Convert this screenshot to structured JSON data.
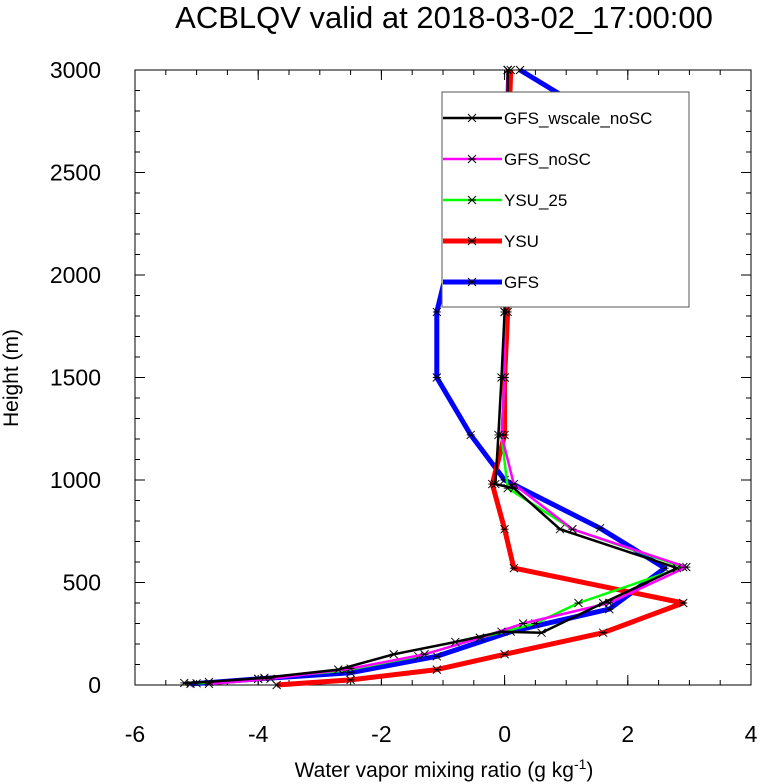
{
  "chart_data": {
    "type": "line",
    "title": "ACBLQV valid at 2018-03-02_17:00:00",
    "xlabel": "Water vapor mixing ratio (g kg",
    "xlabel_sup": "-1",
    "xlabel_end": ")",
    "ylabel": "Height (m)",
    "xlim": [
      -6,
      4
    ],
    "ylim": [
      0,
      3000
    ],
    "xticks": [
      -6,
      -4,
      -2,
      0,
      2,
      4
    ],
    "yticks": [
      0,
      500,
      1000,
      1500,
      2000,
      2500,
      3000
    ],
    "xtick_labels": [
      "-6",
      "-4",
      "-2",
      "0",
      "2",
      "4"
    ],
    "ytick_labels": [
      "0",
      "500",
      "1000",
      "1500",
      "2000",
      "2500",
      "3000"
    ],
    "grid": false,
    "legend_position": "top-right",
    "series": [
      {
        "name": "GFS_wscale_noSC",
        "color": "#000000",
        "points": [
          [
            -5.2,
            10
          ],
          [
            -4.8,
            15
          ],
          [
            -3.9,
            35
          ],
          [
            -2.7,
            75
          ],
          [
            -1.8,
            150
          ],
          [
            -0.8,
            210
          ],
          [
            -0.05,
            260
          ],
          [
            0.6,
            255
          ],
          [
            1.6,
            400
          ],
          [
            2.8,
            570
          ],
          [
            0.9,
            760
          ],
          [
            0.15,
            960
          ],
          [
            -0.15,
            980
          ],
          [
            -0.1,
            1220
          ],
          [
            -0.05,
            1500
          ],
          [
            0.0,
            1820
          ],
          [
            0.0,
            2200
          ],
          [
            0.05,
            2600
          ],
          [
            0.05,
            3000
          ]
        ]
      },
      {
        "name": "GFS_noSC",
        "color": "#ff00ff",
        "points": [
          [
            -4.8,
            5
          ],
          [
            -3.8,
            30
          ],
          [
            -2.5,
            80
          ],
          [
            -1.3,
            150
          ],
          [
            -0.4,
            230
          ],
          [
            0.3,
            300
          ],
          [
            1.7,
            400
          ],
          [
            2.95,
            575
          ],
          [
            1.1,
            760
          ],
          [
            0.15,
            980
          ],
          [
            -0.05,
            1220
          ],
          [
            0.0,
            1500
          ],
          [
            0.0,
            1820
          ],
          [
            0.0,
            2200
          ],
          [
            0.0,
            2600
          ],
          [
            0.05,
            3000
          ]
        ]
      },
      {
        "name": "YSU_25",
        "color": "#00ff00",
        "points": [
          [
            -5.0,
            8
          ],
          [
            -4.0,
            30
          ],
          [
            -2.6,
            70
          ],
          [
            -1.4,
            140
          ],
          [
            -0.4,
            230
          ],
          [
            0.5,
            300
          ],
          [
            1.2,
            400
          ],
          [
            2.9,
            575
          ],
          [
            1.1,
            760
          ],
          [
            0.05,
            960
          ],
          [
            -0.05,
            1220
          ],
          [
            0.0,
            1500
          ],
          [
            0.0,
            1820
          ],
          [
            0.0,
            2200
          ],
          [
            0.0,
            2600
          ],
          [
            0.05,
            3000
          ]
        ]
      },
      {
        "name": "YSU",
        "color": "#ff0000",
        "points": [
          [
            -3.7,
            0
          ],
          [
            -2.5,
            25
          ],
          [
            -1.1,
            75
          ],
          [
            0.0,
            150
          ],
          [
            1.6,
            255
          ],
          [
            2.9,
            400
          ],
          [
            0.15,
            570
          ],
          [
            0.0,
            760
          ],
          [
            -0.2,
            980
          ],
          [
            0.0,
            1220
          ],
          [
            0.0,
            1500
          ],
          [
            0.05,
            1820
          ],
          [
            0.05,
            2200
          ],
          [
            0.05,
            2600
          ],
          [
            0.1,
            3000
          ]
        ]
      },
      {
        "name": "GFS",
        "color": "#0000ff",
        "points": [
          [
            -5.1,
            5
          ],
          [
            -4.0,
            30
          ],
          [
            -2.5,
            60
          ],
          [
            -1.1,
            140
          ],
          [
            0.1,
            260
          ],
          [
            1.7,
            370
          ],
          [
            2.6,
            570
          ],
          [
            1.55,
            765
          ],
          [
            0.0,
            1000
          ],
          [
            -0.55,
            1220
          ],
          [
            -1.1,
            1500
          ],
          [
            -1.1,
            1820
          ],
          [
            -0.8,
            2190
          ],
          [
            2.55,
            2580
          ],
          [
            0.25,
            3000
          ]
        ]
      }
    ]
  }
}
